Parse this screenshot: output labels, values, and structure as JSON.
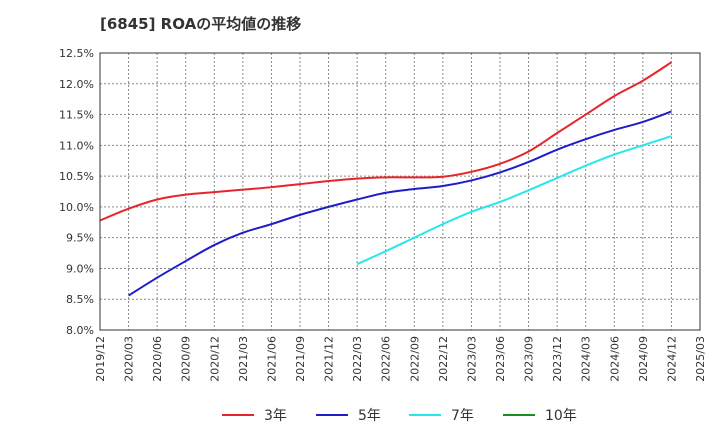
{
  "chart_data": {
    "type": "line",
    "title": "[6845]  ROAの平均値の推移",
    "xlabel": "",
    "ylabel": "",
    "ylim": [
      8.0,
      12.5
    ],
    "y_ticks": [
      "12.5%",
      "12.0%",
      "11.5%",
      "11.0%",
      "10.5%",
      "10.0%",
      "9.5%",
      "9.0%",
      "8.5%",
      "8.0%"
    ],
    "categories": [
      "2019/12",
      "2020/03",
      "2020/06",
      "2020/09",
      "2020/12",
      "2021/03",
      "2021/06",
      "2021/09",
      "2021/12",
      "2022/03",
      "2022/06",
      "2022/09",
      "2022/12",
      "2023/03",
      "2023/06",
      "2023/09",
      "2023/12",
      "2024/03",
      "2024/06",
      "2024/09",
      "2024/12",
      "2025/03"
    ],
    "grid": true,
    "legend_position": "bottom",
    "series": [
      {
        "name": "3年",
        "color": "#e8242a",
        "values": [
          9.78,
          9.97,
          10.12,
          10.2,
          10.24,
          10.28,
          10.32,
          10.37,
          10.42,
          10.46,
          10.48,
          10.48,
          10.49,
          10.57,
          10.7,
          10.9,
          11.2,
          11.5,
          11.8,
          12.05,
          12.35,
          null
        ]
      },
      {
        "name": "5年",
        "color": "#1e1ec8",
        "values": [
          null,
          8.56,
          8.85,
          9.12,
          9.38,
          9.58,
          9.72,
          9.87,
          10.0,
          10.12,
          10.23,
          10.29,
          10.34,
          10.43,
          10.56,
          10.73,
          10.93,
          11.1,
          11.25,
          11.38,
          11.55,
          null
        ]
      },
      {
        "name": "7年",
        "color": "#27e6ee",
        "values": [
          null,
          null,
          null,
          null,
          null,
          null,
          null,
          null,
          null,
          9.07,
          9.28,
          9.5,
          9.72,
          9.92,
          10.08,
          10.27,
          10.47,
          10.67,
          10.85,
          11.0,
          11.15,
          null
        ]
      },
      {
        "name": "10年",
        "color": "#1e8c1e",
        "values": [
          null,
          null,
          null,
          null,
          null,
          null,
          null,
          null,
          null,
          null,
          null,
          null,
          null,
          null,
          null,
          null,
          null,
          null,
          null,
          null,
          null,
          null
        ]
      }
    ]
  }
}
